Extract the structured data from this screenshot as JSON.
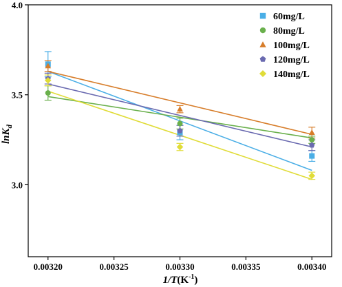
{
  "chart_data": {
    "type": "scatter",
    "xlabel": "1/T(K⁻¹)",
    "ylabel": "lnK_d",
    "xlim": [
      0.003185,
      0.003415
    ],
    "ylim": [
      2.6,
      4.0
    ],
    "x_ticks": [
      "0.00320",
      "0.00325",
      "0.00330",
      "0.00335",
      "0.00340"
    ],
    "y_ticks": [
      "3.0",
      "3.5",
      "4.0"
    ],
    "legend_position": "top-right",
    "series": [
      {
        "name": "60mg/L",
        "marker": "square",
        "color": "#4aaee6",
        "x": [
          0.0032,
          0.0033,
          0.0034
        ],
        "y": [
          3.67,
          3.29,
          3.16
        ],
        "err": [
          0.07,
          0.04,
          0.03
        ],
        "fit": [
          3.63,
          3.08
        ]
      },
      {
        "name": "80mg/L",
        "marker": "circle",
        "color": "#6ab04c",
        "x": [
          0.0032,
          0.0033,
          0.0034
        ],
        "y": [
          3.51,
          3.34,
          3.25
        ],
        "err": [
          0.04,
          0.03,
          0.02
        ],
        "fit": [
          3.49,
          3.26
        ]
      },
      {
        "name": "100mg/L",
        "marker": "triangle",
        "color": "#d77d2a",
        "x": [
          0.0032,
          0.0033,
          0.0034
        ],
        "y": [
          3.66,
          3.42,
          3.29
        ],
        "err": [
          0.03,
          0.02,
          0.03
        ],
        "fit": [
          3.63,
          3.28
        ]
      },
      {
        "name": "120mg/L",
        "marker": "pentagon",
        "color": "#6a6ab0",
        "x": [
          0.0032,
          0.0033,
          0.0034
        ],
        "y": [
          3.59,
          3.3,
          3.22
        ],
        "err": [
          0.03,
          0.03,
          0.03
        ],
        "fit": [
          3.56,
          3.21
        ]
      },
      {
        "name": "140mg/L",
        "marker": "diamond",
        "color": "#e0dc38",
        "x": [
          0.0032,
          0.0033,
          0.0034
        ],
        "y": [
          3.58,
          3.21,
          3.05
        ],
        "err": [
          0.03,
          0.02,
          0.02
        ],
        "fit": [
          3.52,
          3.03
        ]
      }
    ]
  }
}
